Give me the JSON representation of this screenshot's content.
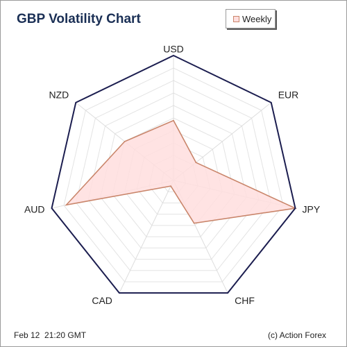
{
  "chart_data": {
    "type": "radar",
    "title": "GBP Volatility Chart",
    "categories": [
      "USD",
      "EUR",
      "JPY",
      "CHF",
      "CAD",
      "AUD",
      "NZD"
    ],
    "series": [
      {
        "name": "Weekly",
        "values": [
          0.48,
          0.23,
          1.0,
          0.38,
          0.05,
          0.88,
          0.5
        ]
      }
    ],
    "rlim": [
      0,
      1
    ],
    "grid_rings": 10,
    "legend_position": "top-right",
    "colors": {
      "outline": "#1b1d4f",
      "grid": "#e3e3e3",
      "spokes": "#dddddd",
      "series_fill": "#ffdede",
      "series_stroke": "#c9856a"
    }
  },
  "footer": {
    "timestamp": "Feb 12  21:20 GMT",
    "credit": "(c) Action Forex"
  }
}
